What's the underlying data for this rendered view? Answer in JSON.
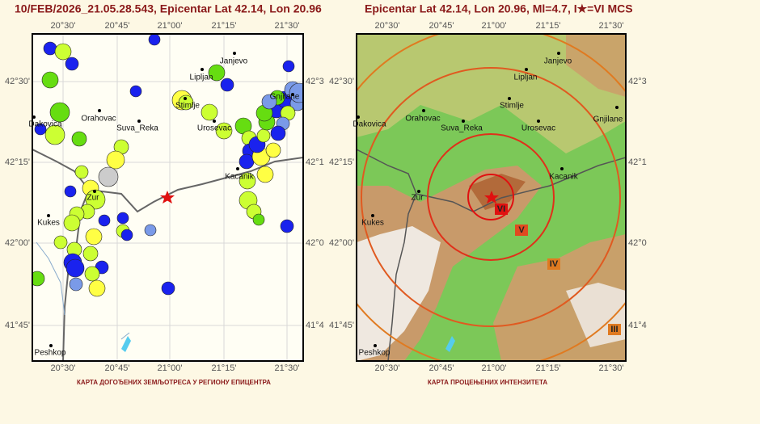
{
  "left_panel": {
    "title": "10/FEB/2026_21.05.28.543, Epicentar Lat 42.14, Lon 20.96",
    "caption": "КАРТА ДОГОЂЕНИХ ЗЕМЉОТРЕСА У РЕГИОНУ ЕПИЦЕНТРА",
    "x_ticks": [
      "20°30'",
      "20°45'",
      "21°00'",
      "21°15'",
      "21°30'"
    ],
    "y_ticks": [
      "42°30'",
      "42°15'",
      "42°00'",
      "41°45'"
    ],
    "y_ticks_cut": [
      "42°3",
      "42°1",
      "42°0",
      "41°4"
    ],
    "cities": [
      "Janjevo",
      "Lipljan",
      "Gnjilane",
      "Orahovac",
      "Stimlje",
      "Dakovica",
      "Suva_Reka",
      "Urosevac",
      "Kacanik",
      "Zur",
      "Kukes",
      "Peshkop"
    ]
  },
  "right_panel": {
    "title": "Epicentar Lat 42.14, Lon 20.96, Ml=4.7, I★=VI MCS",
    "caption": "КАРТА ПРОЦЕЊЕНИХ ИНТЕНЗИТЕТА",
    "x_ticks": [
      "20°30'",
      "20°45'",
      "21°00'",
      "21°15'",
      "21°30'"
    ],
    "y_ticks": [
      "42°30'",
      "42°15'",
      "42°00'",
      "41°45'"
    ],
    "y_ticks_cut": [
      "42°3",
      "42°1",
      "42°0",
      "41°4"
    ],
    "cities": [
      "Janjevo",
      "Lipljan",
      "Gnjilane",
      "Orahovac",
      "Stimlje",
      "Dakovica",
      "Suva_Reka",
      "Urosevac",
      "Kacanik",
      "Zur",
      "Kukes",
      "Peshkop"
    ],
    "intensity_labels": [
      "VI",
      "V",
      "IV",
      "III"
    ]
  }
}
